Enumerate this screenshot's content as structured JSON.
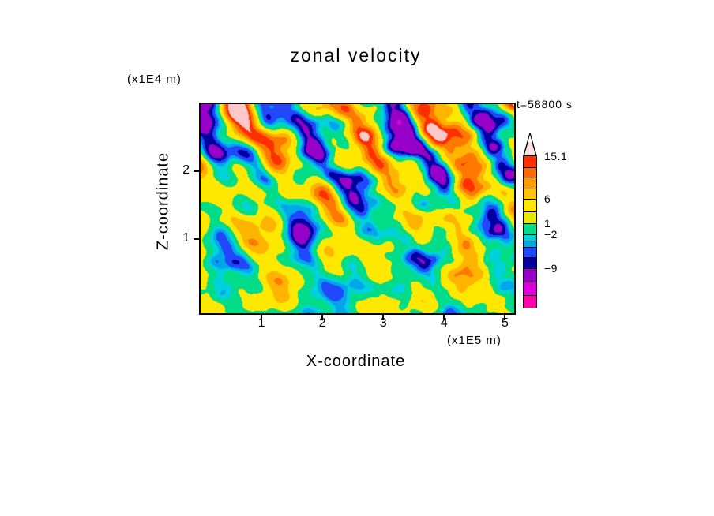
{
  "page": {
    "background": "#FFFFFF",
    "frame_color": "#000000"
  },
  "chart_data": {
    "type": "heatmap",
    "title": "zonal velocity",
    "time_label": "t=58800 s",
    "xlabel": "X-coordinate",
    "ylabel": "Z-coordinate",
    "x_unit_label": "(x1E5 m)",
    "y_unit_label": "(x1E4 m)",
    "x_ticks": [
      "1",
      "2",
      "3",
      "4",
      "5"
    ],
    "y_ticks": [
      "2",
      "1"
    ],
    "xlim": [
      0,
      5.15
    ],
    "ylim": [
      -0.1,
      3.0
    ],
    "grid": false,
    "legend_position": "right-colorbar",
    "levels": [
      -15,
      -9,
      -7,
      -5,
      -3.5,
      -2,
      1,
      6,
      9,
      12,
      15.1
    ],
    "palette_low_to_high": [
      "#DC00DC",
      "#9600C8",
      "#0000A0",
      "#2346FF",
      "#00A6E8",
      "#00D2DC",
      "#00DC87",
      "#FFE800",
      "#FFB400",
      "#FF7800",
      "#FF3000",
      "#FFC8C8"
    ],
    "colorbar": {
      "tip_fill": "#FFE3E3",
      "labels": [
        {
          "text": "15.1",
          "top": 22
        },
        {
          "text": "6",
          "top": 76
        },
        {
          "text": "1",
          "top": 107
        },
        {
          "text": "−2",
          "top": 121
        },
        {
          "text": "−9",
          "top": 164
        }
      ],
      "segments": [
        {
          "color": "#FF3000",
          "h": 14
        },
        {
          "color": "#FF6900",
          "h": 13
        },
        {
          "color": "#FF9B00",
          "h": 14
        },
        {
          "color": "#FFC300",
          "h": 13
        },
        {
          "color": "#FFE800",
          "h": 16
        },
        {
          "color": "#E8E800",
          "h": 15
        },
        {
          "color": "#00DC87",
          "h": 14
        },
        {
          "color": "#00D2DC",
          "h": 8
        },
        {
          "color": "#00A6E8",
          "h": 8
        },
        {
          "color": "#2346FF",
          "h": 13
        },
        {
          "color": "#0000A0",
          "h": 14
        },
        {
          "color": "#9600C8",
          "h": 17
        },
        {
          "color": "#DC00DC",
          "h": 17
        },
        {
          "color": "#FF00AA",
          "h": 16
        }
      ]
    }
  }
}
